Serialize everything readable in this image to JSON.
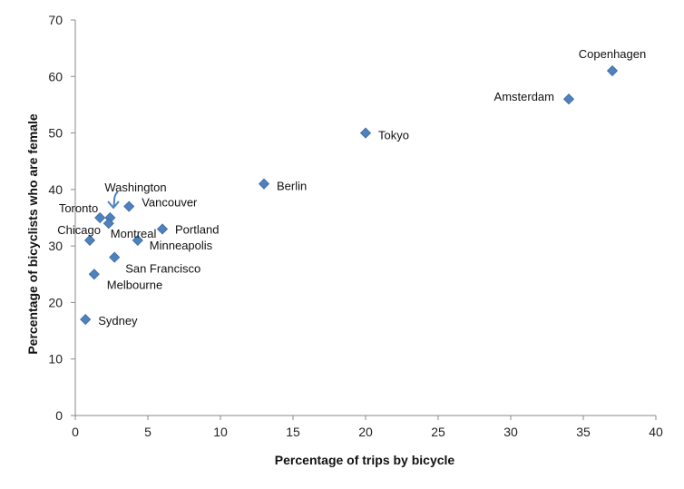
{
  "chart_data": {
    "type": "scatter",
    "title": "",
    "xlabel": "Percentage of trips by bicycle",
    "ylabel": "Percentage of bicyclists who are female",
    "xlim": [
      0,
      40
    ],
    "ylim": [
      0,
      70
    ],
    "x_ticks": [
      0,
      5,
      10,
      15,
      20,
      25,
      30,
      35,
      40
    ],
    "y_ticks": [
      0,
      10,
      20,
      30,
      40,
      50,
      60,
      70
    ],
    "grid": false,
    "legend": "none",
    "marker": "diamond",
    "marker_color": "#4f81bd",
    "points": [
      {
        "label": "Copenhagen",
        "x": 37,
        "y": 61
      },
      {
        "label": "Amsterdam",
        "x": 34,
        "y": 56
      },
      {
        "label": "Tokyo",
        "x": 20,
        "y": 50
      },
      {
        "label": "Berlin",
        "x": 13,
        "y": 41
      },
      {
        "label": "Washington",
        "x": 2.4,
        "y": 35
      },
      {
        "label": "Vancouver",
        "x": 3.7,
        "y": 37
      },
      {
        "label": "Toronto",
        "x": 1.7,
        "y": 35
      },
      {
        "label": "Montreal",
        "x": 2.3,
        "y": 34
      },
      {
        "label": "Chicago",
        "x": 1.0,
        "y": 31
      },
      {
        "label": "Portland",
        "x": 6.0,
        "y": 33
      },
      {
        "label": "Minneapolis",
        "x": 4.3,
        "y": 31
      },
      {
        "label": "San Francisco",
        "x": 2.7,
        "y": 28
      },
      {
        "label": "Melbourne",
        "x": 1.3,
        "y": 25
      },
      {
        "label": "Sydney",
        "x": 0.7,
        "y": 17
      }
    ]
  }
}
